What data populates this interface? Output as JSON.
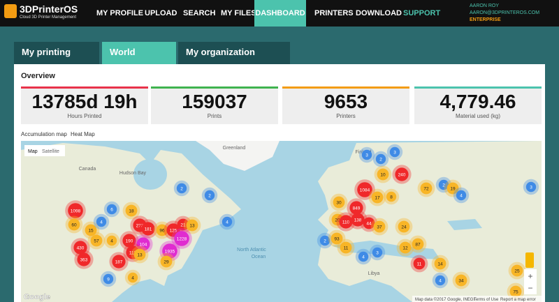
{
  "header": {
    "logo": "3DPrinterOS",
    "logo_subtitle": "Cloud 3D Printer Management",
    "nav": [
      "MY PROFILE",
      "UPLOAD",
      "SEARCH",
      "MY FILES",
      "DASHBOARD",
      "PRINTERS",
      "DOWNLOAD",
      "SUPPORT"
    ],
    "user": {
      "name": "AARON ROY",
      "email": "AARON@3DPRINTEROS.COM",
      "plan": "ENTERPRISE"
    }
  },
  "tabs": [
    "My printing history",
    "World statistics",
    "My organization statistics"
  ],
  "overview": {
    "title": "Overview",
    "stats": [
      {
        "value": "13785d 19h",
        "label": "Hours Printed"
      },
      {
        "value": "159037",
        "label": "Prints"
      },
      {
        "value": "9653",
        "label": "Printers"
      },
      {
        "value": "4,779.46",
        "label": "Material used (kg)"
      }
    ]
  },
  "map": {
    "tabs": [
      "Accumulation map",
      "Heat Map"
    ],
    "type_buttons": [
      "Map",
      "Satellite"
    ],
    "place_labels": [
      "Canada",
      "Hudson Bay",
      "Greenland",
      "Finland",
      "North Atlantic",
      "Ocean",
      "Libya"
    ],
    "clusters": [
      "1098",
      "60",
      "15",
      "4",
      "6",
      "18",
      "273",
      "181",
      "96",
      "125",
      "21",
      "13",
      "430",
      "363",
      "57",
      "4",
      "190",
      "104",
      "1228",
      "1935",
      "112",
      "187",
      "13",
      "29",
      "9",
      "4",
      "2",
      "2",
      "4",
      "3",
      "2",
      "3",
      "240",
      "10",
      "1084",
      "30",
      "849",
      "17",
      "8",
      "72",
      "2",
      "19",
      "4",
      "3",
      "20",
      "110",
      "138",
      "44",
      "37",
      "24",
      "2",
      "93",
      "11",
      "3",
      "12",
      "87",
      "11",
      "14",
      "4",
      "4",
      "25",
      "75",
      "34"
    ],
    "footer": {
      "logo": "Google",
      "attribution": "Map data ©2017 Google, INEGI",
      "terms": "Terms of Use",
      "report": "Report a map error"
    }
  }
}
